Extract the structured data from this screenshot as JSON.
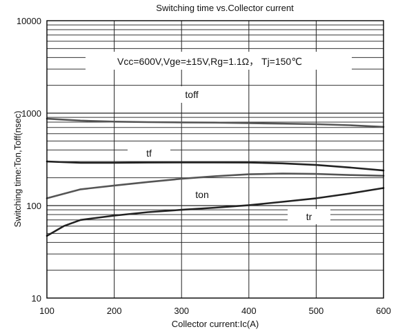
{
  "chart_data": {
    "type": "line",
    "title": "Switching time vs.Collector current",
    "xlabel": "Collector current:Ic(A)",
    "ylabel": "Switching time:Ton,Toff(nsec)",
    "y_scale": "log",
    "xlim": [
      100,
      600
    ],
    "ylim": [
      10,
      10000
    ],
    "x_ticks": [
      "100",
      "200",
      "300",
      "400",
      "500",
      "600"
    ],
    "y_ticks": [
      "10",
      "100",
      "1000",
      "10000"
    ],
    "grid": true,
    "condition_label": "Vcc=600V,Vge=±15V,Rg=1.1Ω， Tj=150℃",
    "series": [
      {
        "name": "toff",
        "color": "#555555",
        "x": [
          100,
          150,
          200,
          250,
          300,
          350,
          400,
          450,
          500,
          550,
          600
        ],
        "y": [
          870,
          830,
          810,
          800,
          795,
          790,
          780,
          770,
          760,
          740,
          710
        ]
      },
      {
        "name": "tf",
        "color": "#222222",
        "x": [
          100,
          150,
          200,
          250,
          300,
          350,
          400,
          450,
          500,
          550,
          600
        ],
        "y": [
          300,
          290,
          290,
          292,
          293,
          293,
          292,
          286,
          275,
          258,
          240
        ]
      },
      {
        "name": "ton",
        "color": "#555555",
        "x": [
          100,
          150,
          200,
          250,
          300,
          350,
          400,
          450,
          500,
          550,
          600
        ],
        "y": [
          120,
          150,
          165,
          180,
          195,
          208,
          218,
          222,
          220,
          214,
          210
        ]
      },
      {
        "name": "tr",
        "color": "#222222",
        "x": [
          100,
          125,
          150,
          200,
          250,
          300,
          350,
          400,
          450,
          500,
          550,
          600
        ],
        "y": [
          47,
          60,
          70,
          78,
          85,
          90,
          95,
          101,
          110,
          120,
          135,
          155
        ]
      }
    ]
  }
}
